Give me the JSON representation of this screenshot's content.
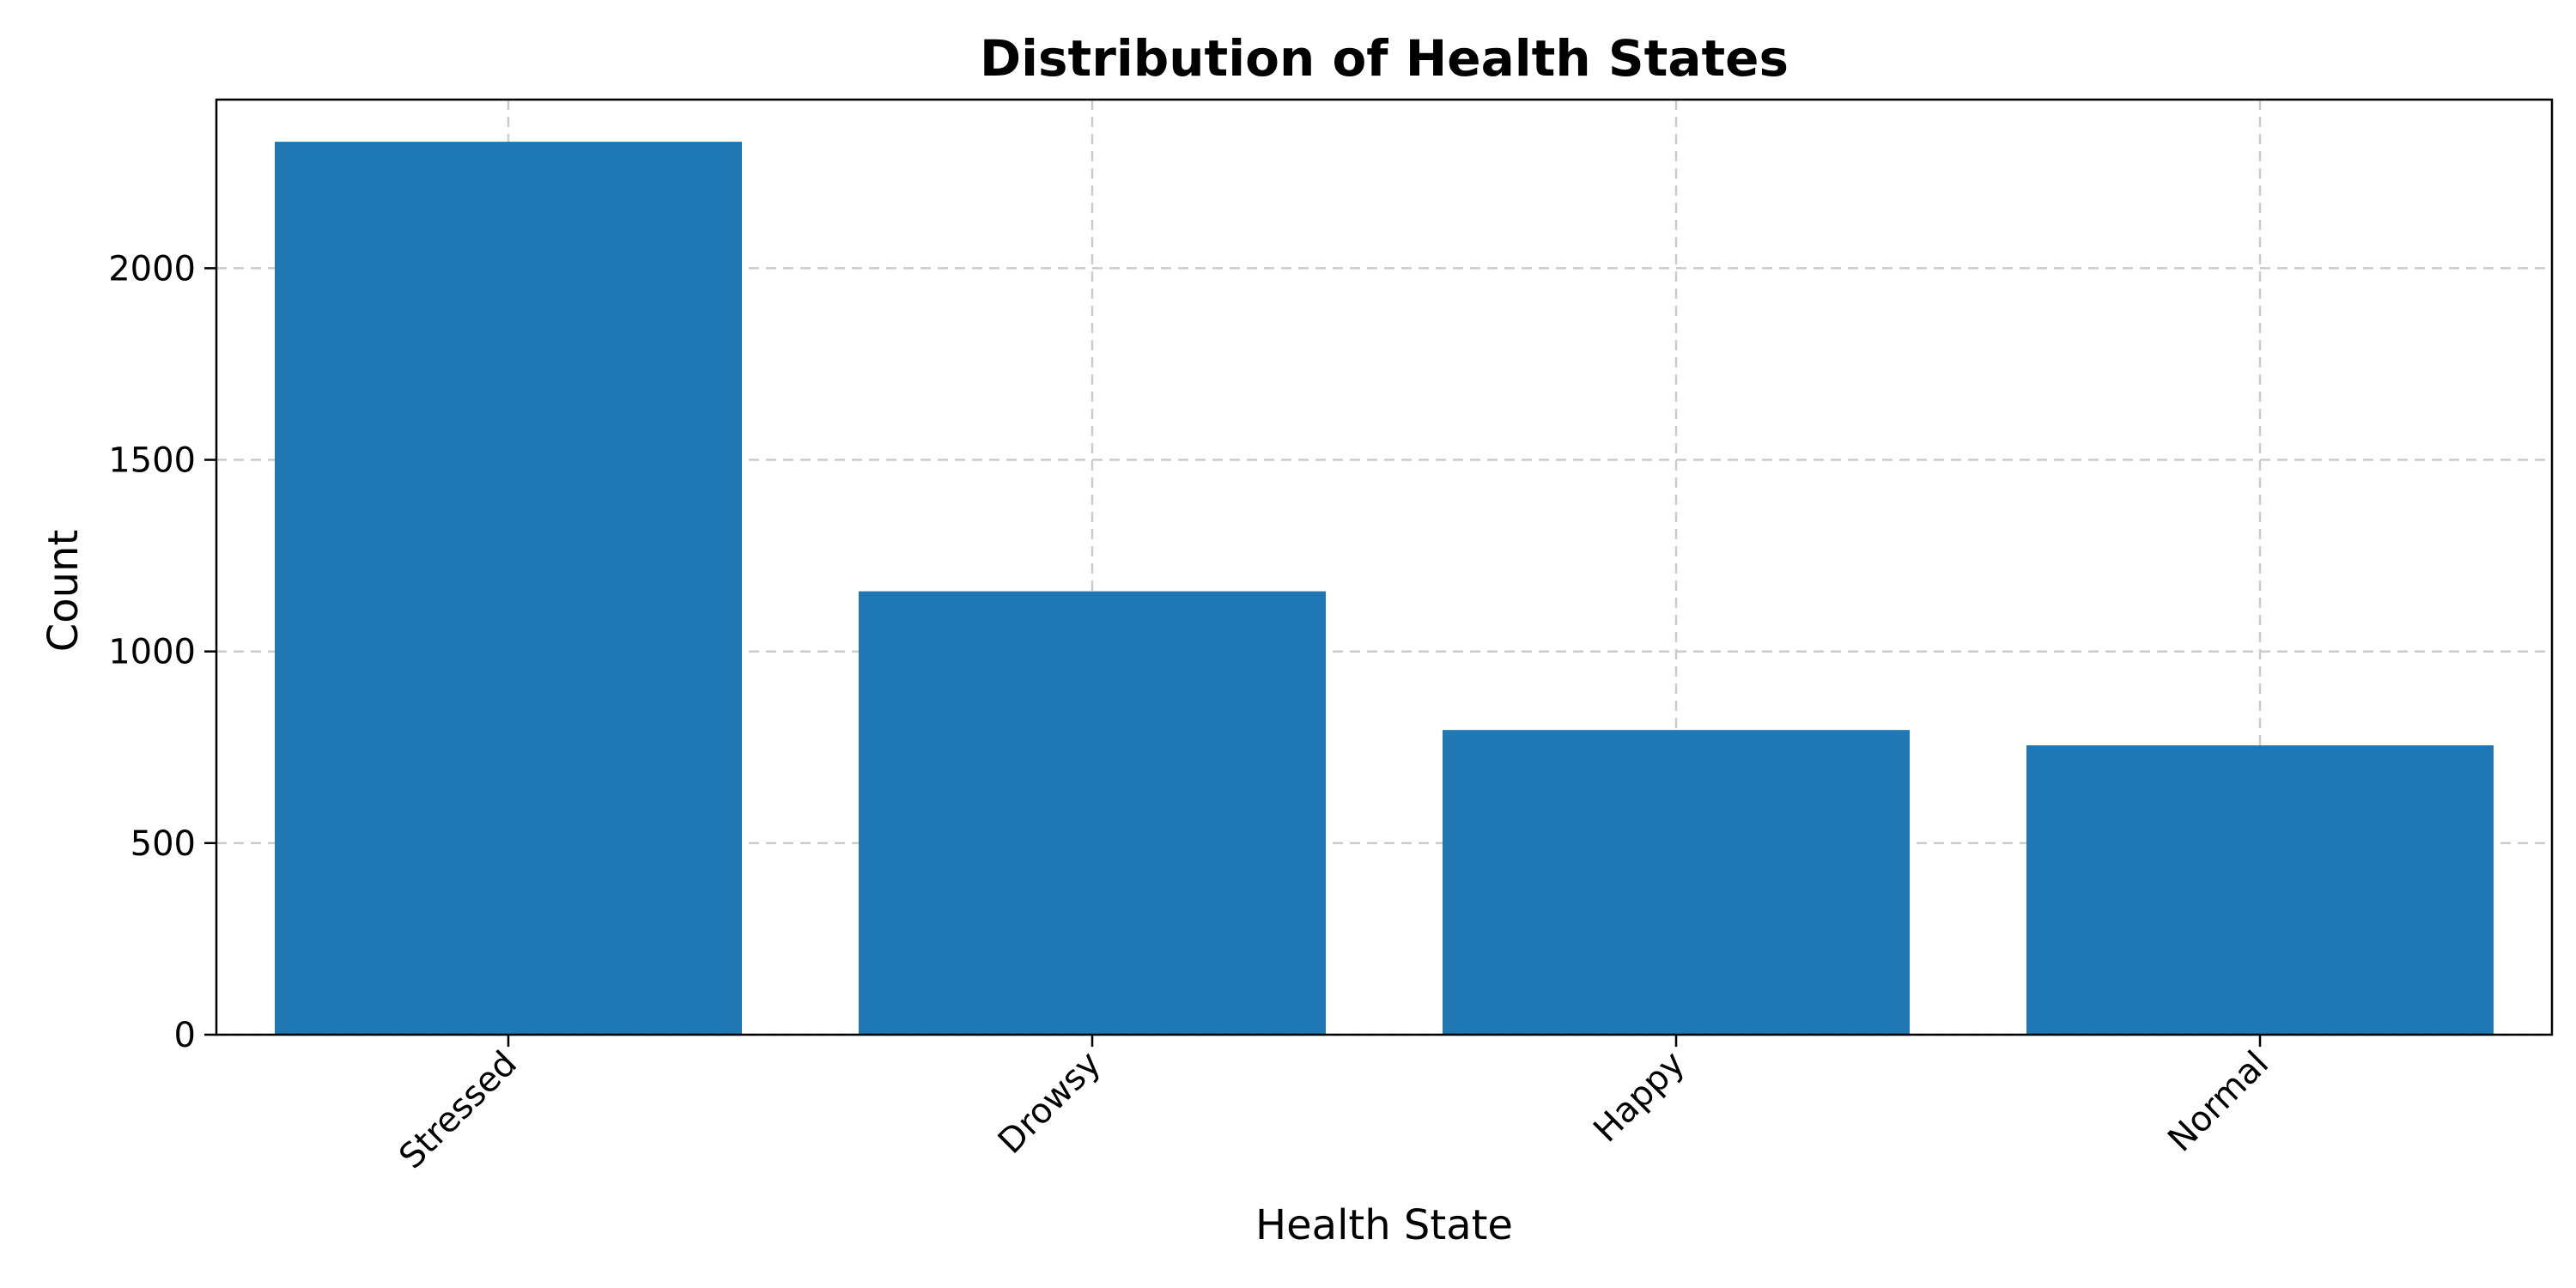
{
  "chart_data": {
    "type": "bar",
    "title": "Distribution of Health States",
    "xlabel": "Health State",
    "ylabel": "Count",
    "categories": [
      "Stressed",
      "Drowsy",
      "Happy",
      "Normal"
    ],
    "values": [
      2330,
      1157,
      795,
      755
    ],
    "ylim": [
      0,
      2440
    ],
    "yticks": [
      0,
      500,
      1000,
      1500,
      2000
    ],
    "xtick_rotation_deg": 45,
    "grid": true,
    "grid_style": "dashed",
    "bar_color": "#1f77b4",
    "grid_color": "#cccccc"
  }
}
